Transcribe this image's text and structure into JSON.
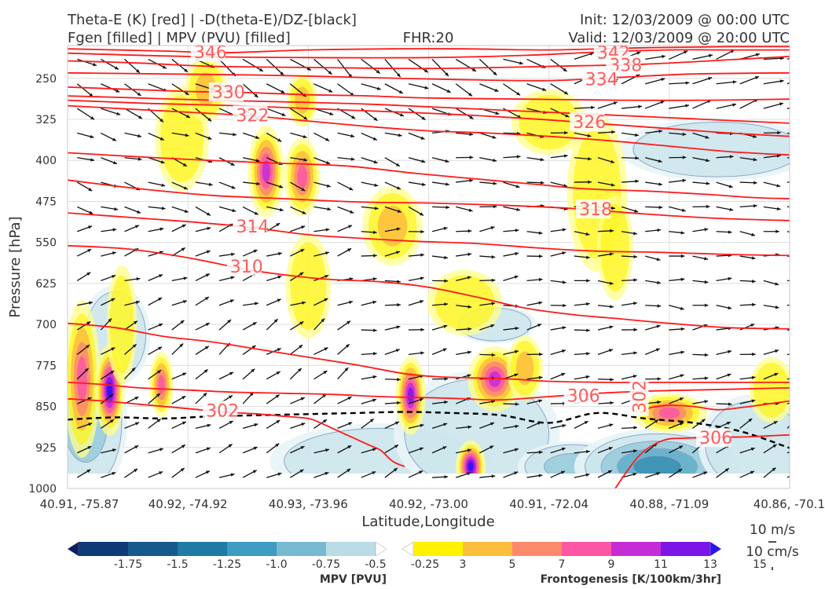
{
  "header": {
    "title_left_1": "Theta-E (K) [red] | -D(theta-E)/DZ-[black]",
    "title_left_2": "Fgen [filled] | MPV (PVU) [filled]",
    "title_center": "FHR:20",
    "title_right_1": "Init: 12/03/2009 @ 00:00 UTC",
    "title_right_2": "Valid: 12/03/2009 @ 20:00 UTC"
  },
  "chart_data": {
    "type": "cross-section",
    "xlabel": "Latitude,Longitude",
    "ylabel": "Pressure [hPa]",
    "x_ticks": [
      "40.91, -75.87",
      "40.92, -74.92",
      "40.93, -73.96",
      "40.92, -73.00",
      "40.91, -72.04",
      "40.88, -71.09",
      "40.86, -70.1"
    ],
    "y_ticks": [
      250,
      325,
      400,
      475,
      550,
      625,
      700,
      775,
      850,
      925,
      1000
    ],
    "ylim": [
      1000,
      190
    ],
    "xlim": [
      0,
      6
    ],
    "theta_e_contours": [
      {
        "label": "346",
        "x": [
          0,
          0.8,
          1.3,
          2.0,
          2.7,
          3.3,
          4.0,
          4.8,
          5.5,
          6.0
        ],
        "p": [
          196,
          200,
          203,
          198,
          196,
          196,
          198,
          194,
          192,
          192
        ],
        "label_x": 1.05
      },
      {
        "label": "342",
        "x": [
          0,
          1.0,
          2.0,
          3.0,
          3.8,
          4.4,
          5.0,
          5.5,
          6.0
        ],
        "p": [
          204,
          210,
          212,
          212,
          208,
          202,
          198,
          198,
          198
        ],
        "label_x": 4.4
      },
      {
        "label": "338",
        "x": [
          0,
          0.6,
          1.2,
          2.0,
          3.0,
          4.0,
          4.8,
          5.5,
          6.0
        ],
        "p": [
          218,
          222,
          228,
          230,
          232,
          228,
          224,
          216,
          210
        ],
        "label_x": 4.5
      },
      {
        "label": "334",
        "x": [
          0,
          0.8,
          1.6,
          2.4,
          3.2,
          4.0,
          4.6,
          5.2,
          6.0
        ],
        "p": [
          240,
          242,
          244,
          248,
          252,
          254,
          248,
          242,
          240
        ],
        "label_x": 4.3
      },
      {
        "label": "330",
        "x": [
          0,
          0.5,
          1.0,
          1.5,
          2.0,
          2.5,
          3.0,
          3.8,
          4.6,
          5.3,
          6.0
        ],
        "p": [
          266,
          270,
          274,
          276,
          280,
          282,
          286,
          288,
          290,
          290,
          288
        ],
        "label_x": 1.2
      },
      {
        "label": "",
        "x": [
          0,
          0.6,
          1.2,
          2.0,
          2.6,
          3.2,
          3.8,
          4.4,
          5.0,
          5.6,
          6.0
        ],
        "p": [
          282,
          286,
          290,
          294,
          298,
          304,
          310,
          316,
          322,
          328,
          332
        ],
        "label_x": 0
      },
      {
        "label": "322",
        "x": [
          0,
          0.5,
          1.0,
          1.5,
          2.0,
          2.5,
          3.0,
          3.5,
          4.0,
          4.5,
          5.0,
          5.5,
          6.0
        ],
        "p": [
          300,
          306,
          312,
          318,
          328,
          338,
          346,
          350,
          356,
          364,
          374,
          384,
          390
        ],
        "label_x": 1.4
      },
      {
        "label": "326",
        "x": [
          0,
          0.7,
          1.4,
          2.1,
          2.8,
          3.4,
          4.0,
          4.5,
          5.0,
          5.5,
          6.0
        ],
        "p": [
          290,
          296,
          300,
          306,
          312,
          318,
          326,
          334,
          342,
          350,
          356
        ],
        "label_x": 4.2
      },
      {
        "label": "",
        "x": [
          0,
          0.8,
          1.6,
          2.3,
          2.9,
          3.4,
          3.9,
          4.3,
          4.8,
          5.3,
          5.7,
          6.0
        ],
        "p": [
          386,
          396,
          404,
          410,
          424,
          434,
          444,
          452,
          456,
          462,
          468,
          470
        ],
        "label_x": 0
      },
      {
        "label": "318",
        "x": [
          0,
          0.6,
          1.2,
          1.8,
          2.4,
          3.0,
          3.6,
          4.2,
          4.8,
          5.4,
          6.0
        ],
        "p": [
          436,
          452,
          464,
          470,
          476,
          478,
          482,
          488,
          498,
          506,
          510
        ],
        "label_x": 4.25
      },
      {
        "label": "314",
        "x": [
          0,
          0.5,
          1.0,
          1.5,
          2.0,
          2.4,
          2.9,
          3.4,
          3.9,
          4.4,
          4.9,
          5.5,
          6.0
        ],
        "p": [
          496,
          504,
          512,
          522,
          536,
          542,
          548,
          552,
          560,
          566,
          568,
          572,
          574
        ],
        "label_x": 1.4
      },
      {
        "label": "310",
        "x": [
          0,
          0.5,
          1.0,
          1.5,
          1.9,
          2.2,
          2.6,
          3.0,
          3.4,
          3.8,
          4.2,
          4.6,
          5.0,
          5.5,
          6.0
        ],
        "p": [
          556,
          562,
          578,
          600,
          612,
          618,
          622,
          632,
          650,
          670,
          682,
          690,
          698,
          706,
          708
        ],
        "label_x": 1.35
      },
      {
        "label": "",
        "x": [
          0,
          0.4,
          0.8,
          1.2,
          1.6,
          2.0,
          2.4,
          2.8,
          3.1,
          3.4,
          3.7,
          4.0,
          4.5,
          5.0,
          5.5,
          6.0
        ],
        "p": [
          698,
          706,
          722,
          732,
          746,
          760,
          774,
          790,
          796,
          798,
          800,
          804,
          806,
          806,
          806,
          806
        ],
        "label_x": 0
      },
      {
        "label": "306",
        "x": [
          0,
          0.3,
          0.6,
          1.0,
          1.4,
          1.8,
          2.2,
          2.6,
          3.0,
          3.3,
          3.6,
          4.0,
          4.4,
          4.8,
          5.2,
          5.6,
          6.0
        ],
        "p": [
          806,
          810,
          816,
          820,
          824,
          826,
          828,
          832,
          834,
          836,
          838,
          832,
          826,
          822,
          820,
          818,
          816
        ],
        "label_x": 4.15
      },
      {
        "label": "302",
        "x": [
          0,
          0.3,
          0.6,
          1.0,
          1.3,
          1.6,
          1.8,
          2.0,
          2.1,
          2.2,
          2.3,
          2.4,
          2.5,
          2.6,
          2.7,
          2.8
        ],
        "p": [
          836,
          840,
          846,
          854,
          860,
          864,
          868,
          872,
          880,
          890,
          900,
          910,
          920,
          930,
          950,
          960
        ],
        "label_x": 1.15
      },
      {
        "label": "302",
        "x": [
          4.75,
          4.85,
          5.0,
          5.2,
          5.4,
          5.6,
          5.8,
          6.0
        ],
        "p": [
          862,
          852,
          848,
          850,
          856,
          852,
          846,
          840
        ],
        "label_x": 4.75
      },
      {
        "label": "306",
        "x": [
          4.55,
          4.75,
          4.95,
          5.15,
          5.35,
          5.6,
          5.8,
          6.0
        ],
        "p": [
          1000,
          940,
          912,
          908,
          906,
          906,
          904,
          902
        ],
        "label_x": 5.25
      }
    ],
    "stability_contour": {
      "x": [
        0,
        0.4,
        0.8,
        1.2,
        1.6,
        2.0,
        2.4,
        2.8,
        3.2,
        3.6,
        4.0,
        4.4,
        4.8,
        5.2,
        5.6,
        6.0
      ],
      "p": [
        874,
        870,
        872,
        868,
        866,
        864,
        862,
        860,
        862,
        866,
        880,
        862,
        872,
        880,
        896,
        926
      ]
    },
    "fgen_blobs": [
      {
        "x": 0.12,
        "p": 800,
        "rx": 0.12,
        "rp": 120,
        "max": 9
      },
      {
        "x": 0.35,
        "p": 820,
        "rx": 0.1,
        "rp": 70,
        "max": 15
      },
      {
        "x": 0.45,
        "p": 700,
        "rx": 0.1,
        "rp": 90,
        "max": 3
      },
      {
        "x": 0.78,
        "p": 810,
        "rx": 0.08,
        "rp": 50,
        "max": 9
      },
      {
        "x": 0.95,
        "p": 360,
        "rx": 0.18,
        "rp": 80,
        "max": 3
      },
      {
        "x": 1.15,
        "p": 270,
        "rx": 0.14,
        "rp": 50,
        "max": 5
      },
      {
        "x": 1.65,
        "p": 420,
        "rx": 0.12,
        "rp": 70,
        "max": 11
      },
      {
        "x": 1.95,
        "p": 430,
        "rx": 0.12,
        "rp": 60,
        "max": 9
      },
      {
        "x": 1.95,
        "p": 290,
        "rx": 0.1,
        "rp": 40,
        "max": 5
      },
      {
        "x": 2.0,
        "p": 630,
        "rx": 0.15,
        "rp": 80,
        "max": 3
      },
      {
        "x": 2.7,
        "p": 520,
        "rx": 0.2,
        "rp": 60,
        "max": 5
      },
      {
        "x": 2.85,
        "p": 830,
        "rx": 0.1,
        "rp": 60,
        "max": 13
      },
      {
        "x": 3.3,
        "p": 660,
        "rx": 0.25,
        "rp": 50,
        "max": 3
      },
      {
        "x": 3.55,
        "p": 800,
        "rx": 0.18,
        "rp": 50,
        "max": 11
      },
      {
        "x": 3.35,
        "p": 960,
        "rx": 0.1,
        "rp": 40,
        "max": 15
      },
      {
        "x": 3.8,
        "p": 780,
        "rx": 0.12,
        "rp": 50,
        "max": 5
      },
      {
        "x": 4.0,
        "p": 330,
        "rx": 0.25,
        "rp": 50,
        "max": 3
      },
      {
        "x": 4.4,
        "p": 460,
        "rx": 0.2,
        "rp": 120,
        "max": 3
      },
      {
        "x": 4.55,
        "p": 560,
        "rx": 0.12,
        "rp": 80,
        "max": 3
      },
      {
        "x": 5.0,
        "p": 862,
        "rx": 0.25,
        "rp": 30,
        "max": 9
      },
      {
        "x": 5.85,
        "p": 820,
        "rx": 0.15,
        "rp": 50,
        "max": 3
      }
    ],
    "mpv_blobs": [
      {
        "x": 0.15,
        "p": 880,
        "rx": 0.3,
        "rp": 120,
        "min": -0.5
      },
      {
        "x": 0.4,
        "p": 720,
        "rx": 0.25,
        "rp": 80,
        "min": -0.25
      },
      {
        "x": 2.6,
        "p": 950,
        "rx": 0.8,
        "rp": 60,
        "min": -0.25
      },
      {
        "x": 3.4,
        "p": 900,
        "rx": 0.6,
        "rp": 100,
        "min": -0.25
      },
      {
        "x": 3.55,
        "p": 700,
        "rx": 0.3,
        "rp": 30,
        "min": -0.25
      },
      {
        "x": 4.2,
        "p": 960,
        "rx": 0.4,
        "rp": 40,
        "min": -0.5
      },
      {
        "x": 4.9,
        "p": 960,
        "rx": 0.6,
        "rp": 60,
        "min": -1.0
      },
      {
        "x": 5.4,
        "p": 380,
        "rx": 0.7,
        "rp": 50,
        "min": -0.25
      },
      {
        "x": 5.7,
        "p": 920,
        "rx": 0.4,
        "rp": 80,
        "min": -0.25
      }
    ],
    "wind_vectors": "~10 m/s, mostly westerly; northwesterly aloft; southwesterly at low levels"
  },
  "legend_mpv": {
    "label": "MPV [PVU]",
    "ticks": [
      "-1.75",
      "-1.5",
      "-1.25",
      "-1.0",
      "-0.75",
      "-0.5",
      "-0.25"
    ],
    "colors": [
      "#0a1d5e",
      "#0f3a78",
      "#155a8a",
      "#1f7ba6",
      "#3e9cc0",
      "#78b9d2",
      "#b9dce6",
      "#ffffff"
    ]
  },
  "legend_fgen": {
    "label": "Frontogenesis [K/100km/3hr]",
    "ticks": [
      "3",
      "5",
      "7",
      "9",
      "11",
      "13",
      "15"
    ],
    "colors": [
      "#ffffff",
      "#fff200",
      "#fdbd3d",
      "#fb8a6d",
      "#fc57a4",
      "#c62cd6",
      "#7b16e6",
      "#2a12f4"
    ]
  },
  "vector_key": {
    "label1": "10 m/s",
    "label2": "10 cm/s"
  },
  "colors": {
    "theta_e": "#ff1a1a",
    "theta_e_label": "#ff5b5b",
    "mpv_outline": "#8ea7c7",
    "stability": "#000000",
    "vectors": "#111111"
  }
}
